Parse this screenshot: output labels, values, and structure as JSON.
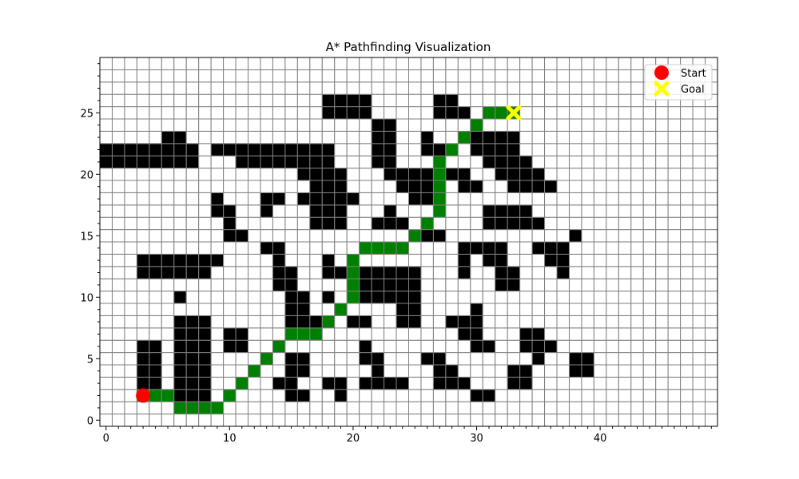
{
  "chart_data": {
    "type": "heatmap",
    "title": "A* Pathfinding Visualization",
    "xlabel": "",
    "ylabel": "",
    "grid_size": [
      50,
      30
    ],
    "xlim": [
      -0.5,
      49.5
    ],
    "ylim": [
      -0.5,
      29.5
    ],
    "x_ticks": [
      0,
      10,
      20,
      30,
      40
    ],
    "y_ticks": [
      0,
      5,
      10,
      15,
      20,
      25
    ],
    "grid": true,
    "legend_position": "upper right",
    "legend": [
      {
        "label": "Start",
        "marker": "circle",
        "color": "#ff0000"
      },
      {
        "label": "Goal",
        "marker": "x",
        "color": "#ffff00"
      }
    ],
    "start": {
      "x": 3,
      "y": 2
    },
    "goal": {
      "x": 33,
      "y": 25
    },
    "colors": {
      "free": "#ffffff",
      "obstacle": "#000000",
      "path": "#008000",
      "grid": "#808080",
      "start": "#ff0000",
      "goal": "#ffff00"
    },
    "obstacle_rows": {
      "26": [
        [
          18,
          21
        ],
        [
          27,
          28
        ]
      ],
      "25": [
        [
          18,
          21
        ],
        [
          27,
          29
        ]
      ],
      "24": [
        [
          22,
          23
        ]
      ],
      "23": [
        [
          5,
          6
        ],
        [
          22,
          23
        ],
        [
          26,
          26
        ],
        [
          30,
          33
        ]
      ],
      "22": [
        [
          0,
          7
        ],
        [
          9,
          18
        ],
        [
          22,
          23
        ],
        [
          26,
          27
        ],
        [
          30,
          33
        ]
      ],
      "21": [
        [
          0,
          7
        ],
        [
          11,
          18
        ],
        [
          22,
          23
        ],
        [
          31,
          34
        ]
      ],
      "20": [
        [
          16,
          19
        ],
        [
          23,
          26
        ],
        [
          28,
          29
        ],
        [
          32,
          35
        ]
      ],
      "19": [
        [
          17,
          19
        ],
        [
          24,
          26
        ],
        [
          29,
          30
        ],
        [
          33,
          36
        ]
      ],
      "18": [
        [
          9,
          9
        ],
        [
          13,
          14
        ],
        [
          16,
          20
        ],
        [
          25,
          26
        ]
      ],
      "17": [
        [
          9,
          10
        ],
        [
          13,
          13
        ],
        [
          17,
          19
        ],
        [
          23,
          23
        ],
        [
          31,
          34
        ]
      ],
      "16": [
        [
          10,
          10
        ],
        [
          17,
          19
        ],
        [
          22,
          24
        ],
        [
          31,
          35
        ]
      ],
      "15": [
        [
          10,
          11
        ],
        [
          26,
          27
        ],
        [
          38,
          38
        ]
      ],
      "14": [
        [
          13,
          14
        ],
        [
          29,
          32
        ],
        [
          35,
          37
        ]
      ],
      "13": [
        [
          3,
          9
        ],
        [
          14,
          14
        ],
        [
          18,
          18
        ],
        [
          29,
          29
        ],
        [
          31,
          32
        ],
        [
          36,
          37
        ]
      ],
      "12": [
        [
          3,
          8
        ],
        [
          14,
          15
        ],
        [
          18,
          19
        ],
        [
          21,
          25
        ],
        [
          29,
          29
        ],
        [
          32,
          33
        ],
        [
          37,
          37
        ]
      ],
      "11": [
        [
          14,
          15
        ],
        [
          21,
          25
        ],
        [
          32,
          33
        ]
      ],
      "10": [
        [
          6,
          6
        ],
        [
          15,
          16
        ],
        [
          18,
          18
        ],
        [
          21,
          25
        ]
      ],
      "9": [
        [
          15,
          16
        ],
        [
          24,
          25
        ],
        [
          30,
          30
        ]
      ],
      "8": [
        [
          6,
          8
        ],
        [
          15,
          17
        ],
        [
          20,
          21
        ],
        [
          24,
          25
        ],
        [
          28,
          30
        ]
      ],
      "7": [
        [
          6,
          8
        ],
        [
          10,
          11
        ],
        [
          16,
          17
        ],
        [
          29,
          30
        ],
        [
          34,
          35
        ]
      ],
      "6": [
        [
          3,
          4
        ],
        [
          6,
          8
        ],
        [
          10,
          11
        ],
        [
          21,
          21
        ],
        [
          30,
          31
        ],
        [
          34,
          36
        ]
      ],
      "5": [
        [
          3,
          4
        ],
        [
          6,
          8
        ],
        [
          15,
          16
        ],
        [
          21,
          22
        ],
        [
          26,
          27
        ],
        [
          35,
          35
        ],
        [
          38,
          39
        ]
      ],
      "4": [
        [
          3,
          4
        ],
        [
          6,
          8
        ],
        [
          15,
          16
        ],
        [
          22,
          22
        ],
        [
          27,
          28
        ],
        [
          33,
          34
        ],
        [
          38,
          39
        ]
      ],
      "3": [
        [
          3,
          4
        ],
        [
          6,
          8
        ],
        [
          14,
          15
        ],
        [
          18,
          19
        ],
        [
          21,
          24
        ],
        [
          27,
          29
        ],
        [
          33,
          34
        ]
      ],
      "2": [
        [
          6,
          8
        ],
        [
          15,
          16
        ],
        [
          19,
          19
        ],
        [
          30,
          31
        ]
      ],
      "1": [
        [
          6,
          8
        ]
      ]
    },
    "path": [
      [
        3,
        2
      ],
      [
        4,
        2
      ],
      [
        5,
        2
      ],
      [
        6,
        1
      ],
      [
        7,
        1
      ],
      [
        8,
        1
      ],
      [
        9,
        1
      ],
      [
        10,
        2
      ],
      [
        11,
        3
      ],
      [
        12,
        4
      ],
      [
        13,
        5
      ],
      [
        14,
        6
      ],
      [
        15,
        7
      ],
      [
        16,
        7
      ],
      [
        17,
        7
      ],
      [
        18,
        8
      ],
      [
        19,
        9
      ],
      [
        20,
        10
      ],
      [
        20,
        11
      ],
      [
        20,
        12
      ],
      [
        20,
        13
      ],
      [
        21,
        14
      ],
      [
        22,
        14
      ],
      [
        23,
        14
      ],
      [
        24,
        14
      ],
      [
        25,
        15
      ],
      [
        26,
        16
      ],
      [
        27,
        17
      ],
      [
        27,
        18
      ],
      [
        27,
        19
      ],
      [
        27,
        20
      ],
      [
        27,
        21
      ],
      [
        28,
        22
      ],
      [
        29,
        23
      ],
      [
        30,
        24
      ],
      [
        31,
        25
      ],
      [
        32,
        25
      ],
      [
        33,
        25
      ]
    ]
  }
}
